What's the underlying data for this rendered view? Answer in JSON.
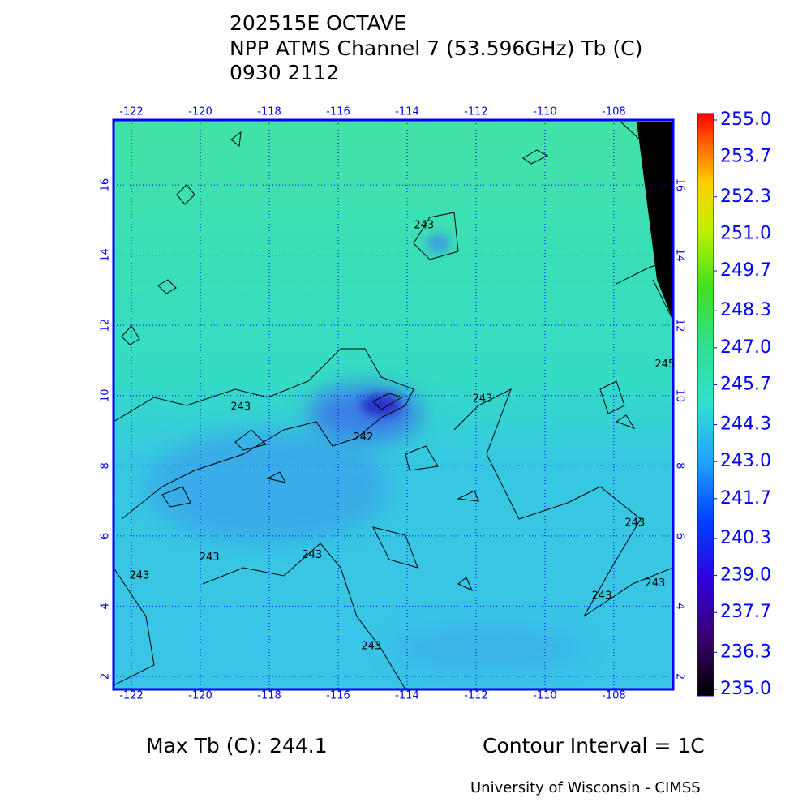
{
  "chart_data": {
    "type": "map",
    "title_lines": [
      "202515E OCTAVE",
      "NPP ATMS Channel 7 (53.596GHz) Tb (C)",
      "0930 2112"
    ],
    "xlim": [
      -122.52,
      -106.28
    ],
    "xticks": [
      -122,
      -120,
      -118,
      -116,
      -114,
      -112,
      -110,
      -108
    ],
    "ylim": [
      1.63,
      17.85
    ],
    "yticks": [
      2,
      4,
      6,
      8,
      10,
      12,
      14,
      16
    ],
    "grid": true,
    "colorbar": {
      "lim": [
        235,
        255
      ],
      "ticks": [
        {
          "value": 235,
          "label": "235.0"
        },
        236.3,
        237.7,
        {
          "value": 239,
          "label": "239.0"
        },
        240.3,
        241.7,
        {
          "value": 243,
          "label": "243.0"
        },
        244.3,
        245.7,
        {
          "value": 247,
          "label": "247.0"
        },
        248.3,
        249.7,
        {
          "value": 251,
          "label": "251.0"
        },
        252.3,
        253.7,
        {
          "value": 255,
          "label": "255.0"
        }
      ]
    },
    "contour_labels": [
      {
        "value": 243,
        "lon": -113.51,
        "lat": 14.85
      },
      {
        "value": 243,
        "lon": -118.83,
        "lat": 9.67
      },
      {
        "value": 242,
        "lon": -115.27,
        "lat": 8.8
      },
      {
        "value": 243,
        "lon": -111.81,
        "lat": 9.9
      },
      {
        "value": 243,
        "lon": -119.74,
        "lat": 5.38
      },
      {
        "value": 243,
        "lon": -116.76,
        "lat": 5.45
      },
      {
        "value": 243,
        "lon": -121.77,
        "lat": 4.87
      },
      {
        "value": 243,
        "lon": -115.04,
        "lat": 2.86
      },
      {
        "value": 243,
        "lon": -107.39,
        "lat": 6.37
      },
      {
        "value": 243,
        "lon": -108.35,
        "lat": 4.29
      },
      {
        "value": 243,
        "lon": -106.8,
        "lat": 4.64
      },
      {
        "value": 245,
        "lon": -106.52,
        "lat": 10.88
      }
    ],
    "max_label": "Max Tb (C): 244.1",
    "contour_interval": "Contour Interval = 1C",
    "credit": "University of Wisconsin - CIMSS"
  }
}
